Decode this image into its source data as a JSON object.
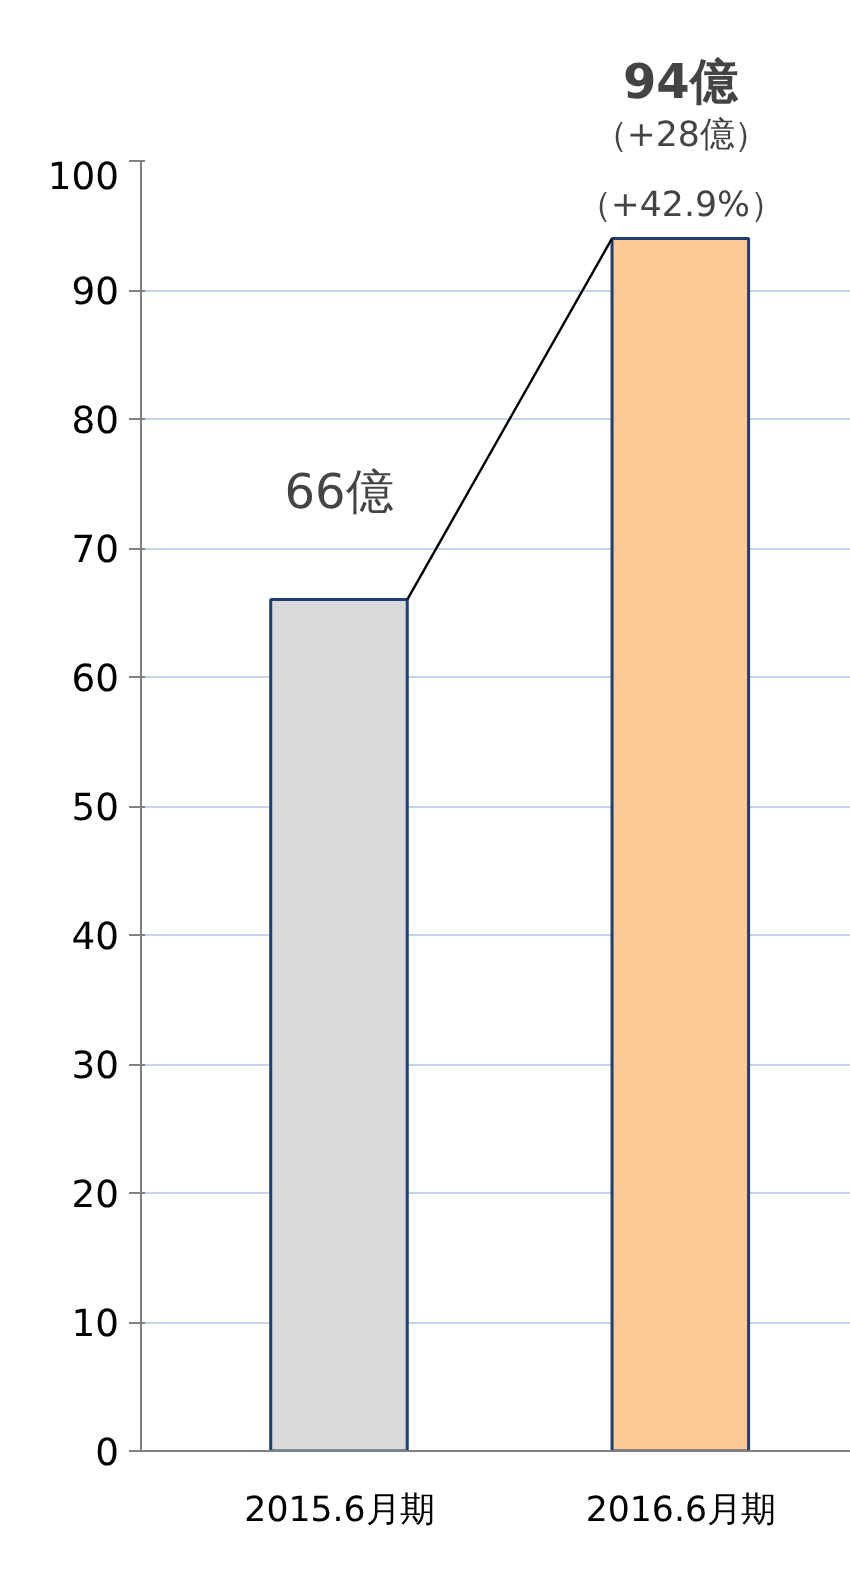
{
  "chart_data": {
    "type": "bar",
    "categories": [
      "2015.6月期",
      "2016.6月期"
    ],
    "values": [
      66,
      94
    ],
    "colors": [
      "#d9d9d9",
      "#ffc994"
    ],
    "value_labels": [
      "66億",
      "94億"
    ],
    "annotations": [
      {
        "text": "（+28億）",
        "x": "2016.6月期",
        "y": 94
      },
      {
        "text": "（+42.9%）",
        "x": "2016.6月期",
        "y": 94
      }
    ],
    "ylim": [
      0,
      100
    ],
    "yticks": [
      0,
      10,
      20,
      30,
      40,
      50,
      60,
      70,
      80,
      90,
      100
    ],
    "grid": "y"
  }
}
